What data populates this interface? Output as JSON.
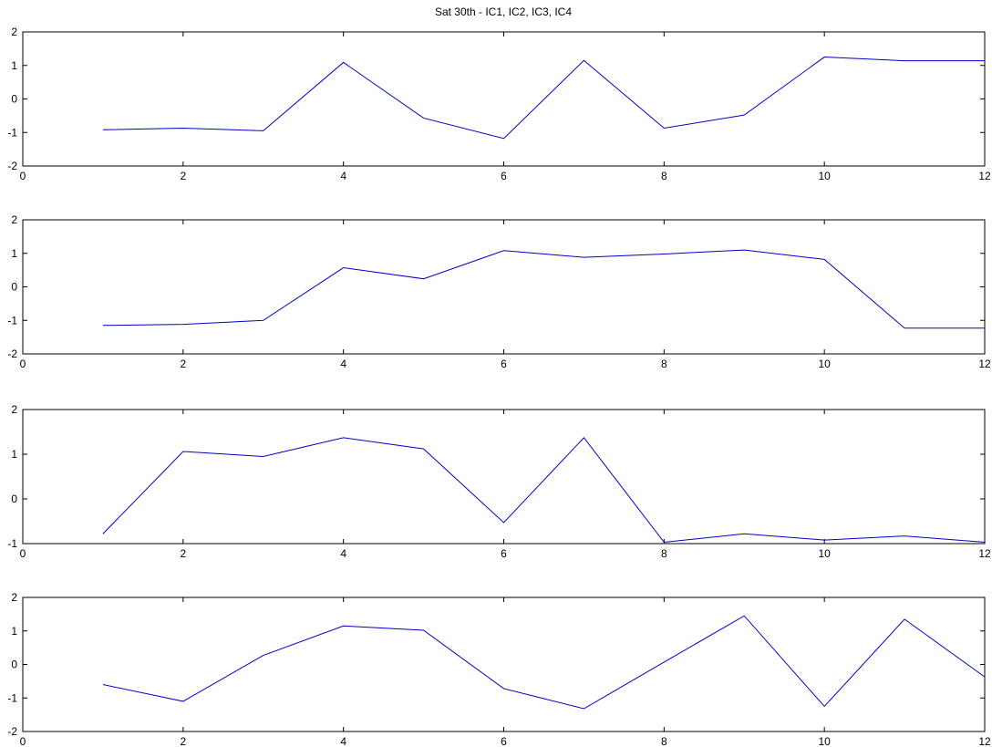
{
  "title": "Sat 30th - IC1, IC2, IC3, IC4",
  "colors": {
    "line": "#0000c8",
    "axes": "#000000",
    "background": "#ffffff"
  },
  "chart_data": [
    {
      "type": "line",
      "xlim": [
        0,
        12
      ],
      "ylim": [
        -2,
        2
      ],
      "x_ticks": [
        0,
        2,
        4,
        6,
        8,
        10,
        12
      ],
      "y_ticks": [
        -2,
        -1,
        0,
        1,
        2
      ],
      "grid": false,
      "series": [
        {
          "x": [
            1,
            2,
            3,
            4,
            5,
            6,
            7,
            8,
            9,
            10,
            11,
            12
          ],
          "y": [
            -0.92,
            -0.87,
            -0.95,
            1.09,
            -0.57,
            -1.18,
            1.15,
            -0.87,
            -0.48,
            1.25,
            1.14,
            1.14
          ]
        }
      ]
    },
    {
      "type": "line",
      "xlim": [
        0,
        12
      ],
      "ylim": [
        -2,
        2
      ],
      "x_ticks": [
        0,
        2,
        4,
        6,
        8,
        10,
        12
      ],
      "y_ticks": [
        -2,
        -1,
        0,
        1,
        2
      ],
      "grid": false,
      "series": [
        {
          "x": [
            1,
            2,
            3,
            4,
            5,
            6,
            7,
            8,
            9,
            10,
            11,
            12
          ],
          "y": [
            -1.15,
            -1.12,
            -1.0,
            0.57,
            0.24,
            1.08,
            0.88,
            0.98,
            1.1,
            0.82,
            -1.23,
            -1.23
          ]
        }
      ]
    },
    {
      "type": "line",
      "xlim": [
        0,
        12
      ],
      "ylim": [
        -1,
        2
      ],
      "x_ticks": [
        0,
        2,
        4,
        6,
        8,
        10,
        12
      ],
      "y_ticks": [
        -1,
        0,
        1,
        2
      ],
      "grid": false,
      "series": [
        {
          "x": [
            1,
            2,
            3,
            4,
            5,
            6,
            7,
            8,
            9,
            10,
            11,
            12
          ],
          "y": [
            -0.78,
            1.06,
            0.95,
            1.37,
            1.12,
            -0.53,
            1.37,
            -0.97,
            -0.78,
            -0.92,
            -0.83,
            -0.97
          ]
        }
      ]
    },
    {
      "type": "line",
      "xlim": [
        0,
        12
      ],
      "ylim": [
        -2,
        2
      ],
      "x_ticks": [
        0,
        2,
        4,
        6,
        8,
        10,
        12
      ],
      "y_ticks": [
        -2,
        -1,
        0,
        1,
        2
      ],
      "grid": false,
      "series": [
        {
          "x": [
            1,
            2,
            3,
            4,
            5,
            6,
            7,
            8,
            9,
            10,
            11,
            12
          ],
          "y": [
            -0.6,
            -1.1,
            0.27,
            1.15,
            1.02,
            -0.72,
            -1.32,
            0.07,
            1.45,
            -1.25,
            1.35,
            -0.37
          ]
        }
      ]
    }
  ]
}
